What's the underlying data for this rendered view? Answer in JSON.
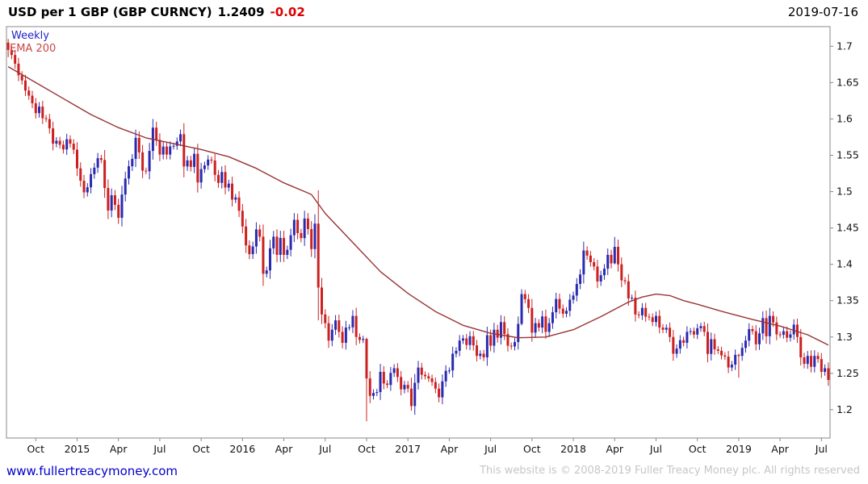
{
  "header": {
    "title": "USD per 1 GBP (GBP CURNCY)",
    "price": "1.2409",
    "change": "-0.02",
    "date": "2019-07-16"
  },
  "legend": {
    "timeframe": "Weekly",
    "ma": "EMA 200"
  },
  "footer": {
    "website": "www.fullertreacymoney.com",
    "copyright": "This website is © 2008-2019 Fuller Treacy Money plc. All rights reserved"
  },
  "chart_data": {
    "type": "candlestick",
    "title": "USD per 1 GBP (GBP CURNCY)",
    "timeframe": "Weekly",
    "overlay": "EMA 200",
    "xlabel": "",
    "ylabel": "",
    "x_span": "Aug 2014 - Jul 2019",
    "ylim": [
      1.161,
      1.727
    ],
    "first_open": 1.705,
    "last_price": 1.2409,
    "grid": false,
    "y_ticks": [
      {
        "v": 1.2,
        "label": "1.2"
      },
      {
        "v": 1.25,
        "label": "1.25"
      },
      {
        "v": 1.3,
        "label": "1.3"
      },
      {
        "v": 1.35,
        "label": "1.35"
      },
      {
        "v": 1.4,
        "label": "1.4"
      },
      {
        "v": 1.45,
        "label": "1.45"
      },
      {
        "v": 1.5,
        "label": "1.5"
      },
      {
        "v": 1.55,
        "label": "1.55"
      },
      {
        "v": 1.6,
        "label": "1.6"
      },
      {
        "v": 1.65,
        "label": "1.65"
      },
      {
        "v": 1.7,
        "label": "1.7"
      }
    ],
    "x_ticks": [
      {
        "week": 8,
        "label": "Oct"
      },
      {
        "week": 20,
        "label": "2015"
      },
      {
        "week": 32,
        "label": "Apr"
      },
      {
        "week": 44,
        "label": "Jul"
      },
      {
        "week": 56,
        "label": "Oct"
      },
      {
        "week": 68,
        "label": "2016"
      },
      {
        "week": 80,
        "label": "Apr"
      },
      {
        "week": 92,
        "label": "Jul"
      },
      {
        "week": 104,
        "label": "Oct"
      },
      {
        "week": 116,
        "label": "2017"
      },
      {
        "week": 128,
        "label": "Apr"
      },
      {
        "week": 140,
        "label": "Jul"
      },
      {
        "week": 152,
        "label": "Oct"
      },
      {
        "week": 164,
        "label": "2018"
      },
      {
        "week": 176,
        "label": "Apr"
      },
      {
        "week": 188,
        "label": "Jul"
      },
      {
        "week": 200,
        "label": "Oct"
      },
      {
        "week": 212,
        "label": "2019"
      },
      {
        "week": 224,
        "label": "Apr"
      },
      {
        "week": 236,
        "label": "Jul"
      }
    ],
    "weekly_closes": [
      1.695,
      1.688,
      1.676,
      1.66,
      1.653,
      1.639,
      1.632,
      1.6215,
      1.608,
      1.617,
      1.601,
      1.5998,
      1.587,
      1.566,
      1.57,
      1.5645,
      1.558,
      1.572,
      1.566,
      1.5577,
      1.532,
      1.515,
      1.499,
      1.5059,
      1.524,
      1.533,
      1.546,
      1.5436,
      1.505,
      1.474,
      1.495,
      1.4818,
      1.464,
      1.496,
      1.518,
      1.5349,
      1.545,
      1.574,
      1.554,
      1.5288,
      1.528,
      1.556,
      1.588,
      1.5712,
      1.551,
      1.562,
      1.551,
      1.5622,
      1.563,
      1.569,
      1.579,
      1.5346,
      1.543,
      1.534,
      1.552,
      1.5126,
      1.531,
      1.536,
      1.544,
      1.5428,
      1.523,
      1.512,
      1.527,
      1.5056,
      1.511,
      1.489,
      1.492,
      1.4736,
      1.452,
      1.426,
      1.414,
      1.4245,
      1.448,
      1.438,
      1.387,
      1.3916,
      1.422,
      1.438,
      1.413,
      1.4363,
      1.413,
      1.42,
      1.44,
      1.4612,
      1.443,
      1.436,
      1.463,
      1.4485,
      1.421,
      1.456,
      1.368,
      1.3311,
      1.319,
      1.295,
      1.31,
      1.3229,
      1.307,
      1.292,
      1.313,
      1.3133,
      1.329,
      1.3,
      1.296,
      1.2974,
      1.243,
      1.219,
      1.223,
      1.2242,
      1.252,
      1.236,
      1.234,
      1.2506,
      1.257,
      1.245,
      1.228,
      1.2341,
      1.229,
      1.205,
      1.237,
      1.2579,
      1.248,
      1.246,
      1.243,
      1.238,
      1.229,
      1.217,
      1.239,
      1.2535,
      1.254,
      1.277,
      1.281,
      1.2951,
      1.298,
      1.289,
      1.301,
      1.2884,
      1.274,
      1.277,
      1.272,
      1.3025,
      1.288,
      1.31,
      1.299,
      1.3205,
      1.304,
      1.288,
      1.287,
      1.293,
      1.318,
      1.359,
      1.352,
      1.3399,
      1.306,
      1.319,
      1.313,
      1.3283,
      1.307,
      1.319,
      1.334,
      1.3523,
      1.339,
      1.332,
      1.336,
      1.3513,
      1.357,
      1.373,
      1.386,
      1.419,
      1.412,
      1.403,
      1.397,
      1.3764,
      1.385,
      1.394,
      1.413,
      1.4013,
      1.424,
      1.4,
      1.378,
      1.3766,
      1.353,
      1.354,
      1.331,
      1.3299,
      1.34,
      1.328,
      1.327,
      1.3206,
      1.329,
      1.313,
      1.31,
      1.3127,
      1.3,
      1.277,
      1.284,
      1.2956,
      1.292,
      1.307,
      1.308,
      1.3033,
      1.312,
      1.315,
      1.307,
      1.2767,
      1.297,
      1.283,
      1.281,
      1.2746,
      1.273,
      1.258,
      1.262,
      1.2754,
      1.274,
      1.285,
      1.295,
      1.3109,
      1.308,
      1.29,
      1.305,
      1.326,
      1.301,
      1.329,
      1.32,
      1.3036,
      1.303,
      1.308,
      1.299,
      1.3036,
      1.317,
      1.3,
      1.272,
      1.263,
      1.274,
      1.259,
      1.274,
      1.2696,
      1.252,
      1.257,
      1.2409
    ],
    "wick_overrides": {
      "0": [
        1.71,
        1.685
      ],
      "90": [
        1.5019,
        1.3229
      ],
      "104": [
        1.299,
        1.1841
      ],
      "117": [
        1.244,
        1.1986
      ],
      "149": [
        1.3657,
        1.316
      ],
      "176": [
        1.4376,
        1.4
      ],
      "212": [
        1.277,
        1.244
      ]
    },
    "ema200_anchors": [
      [
        0,
        1.672
      ],
      [
        8,
        1.65
      ],
      [
        16,
        1.628
      ],
      [
        24,
        1.606
      ],
      [
        32,
        1.588
      ],
      [
        40,
        1.574
      ],
      [
        48,
        1.566
      ],
      [
        56,
        1.558
      ],
      [
        64,
        1.548
      ],
      [
        72,
        1.532
      ],
      [
        80,
        1.512
      ],
      [
        88,
        1.496
      ],
      [
        92,
        1.47
      ],
      [
        100,
        1.43
      ],
      [
        108,
        1.39
      ],
      [
        116,
        1.36
      ],
      [
        124,
        1.335
      ],
      [
        132,
        1.316
      ],
      [
        140,
        1.305
      ],
      [
        148,
        1.299
      ],
      [
        156,
        1.3
      ],
      [
        164,
        1.31
      ],
      [
        172,
        1.328
      ],
      [
        180,
        1.348
      ],
      [
        184,
        1.355
      ],
      [
        188,
        1.359
      ],
      [
        192,
        1.357
      ],
      [
        196,
        1.35
      ],
      [
        200,
        1.345
      ],
      [
        208,
        1.334
      ],
      [
        216,
        1.324
      ],
      [
        224,
        1.315
      ],
      [
        232,
        1.303
      ],
      [
        238,
        1.289
      ]
    ],
    "colors": {
      "up": "#2a2ab0",
      "down": "#cc2020",
      "ema": "#993333",
      "border": "#888888",
      "tick_text": "#111111"
    }
  }
}
